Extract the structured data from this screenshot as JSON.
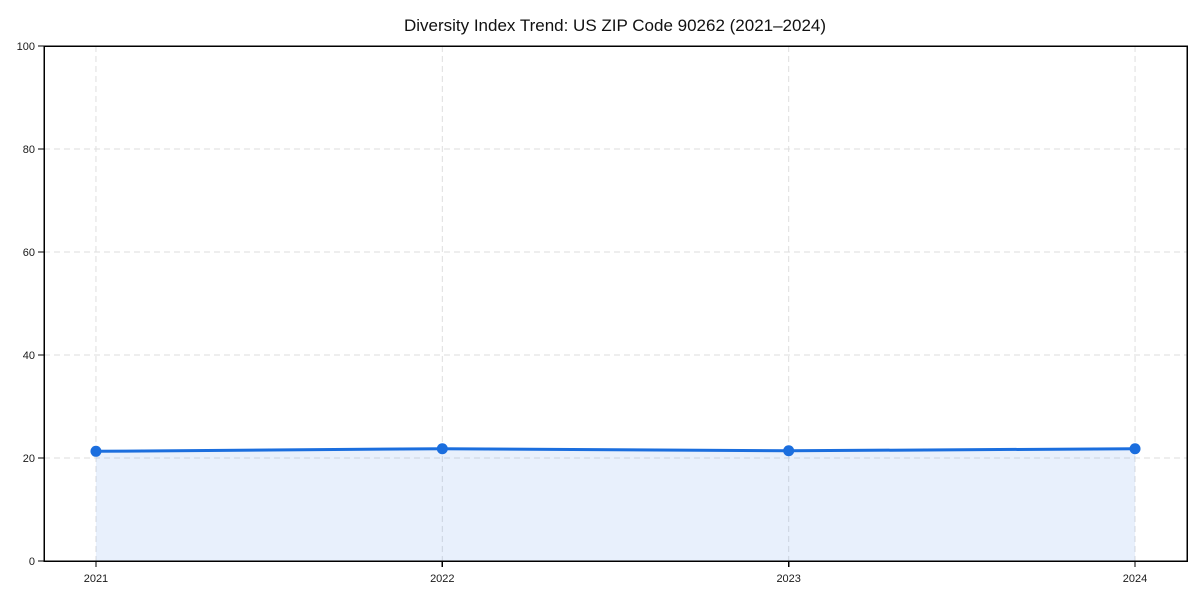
{
  "figure": {
    "title": "Diversity Index Trend: US ZIP Code 90262 (2021–2024)"
  },
  "chart_data": {
    "type": "line",
    "title": "Diversity Index Trend: US ZIP Code 90262 (2021–2024)",
    "x": [
      2021,
      2022,
      2023,
      2024
    ],
    "xtick_labels": [
      "2021",
      "2022",
      "2023",
      "2024"
    ],
    "series": [
      {
        "name": "Diversity Index",
        "values": [
          21.3,
          21.8,
          21.4,
          21.8
        ]
      }
    ],
    "xlabel": "",
    "ylabel": "",
    "ylim": [
      0,
      100
    ],
    "yticks": [
      0,
      20,
      40,
      60,
      80,
      100
    ],
    "grid": true,
    "grid_style": "dashed",
    "legend": "none",
    "marker": "circle",
    "area_fill": true,
    "colors": {
      "line": "#1b6ede",
      "marker": "#1b6ede",
      "area": "rgba(27,110,222,0.10)",
      "grid": "#dedede",
      "axis": "#000000",
      "text": "#1a1a1a",
      "background": "#ffffff"
    }
  }
}
